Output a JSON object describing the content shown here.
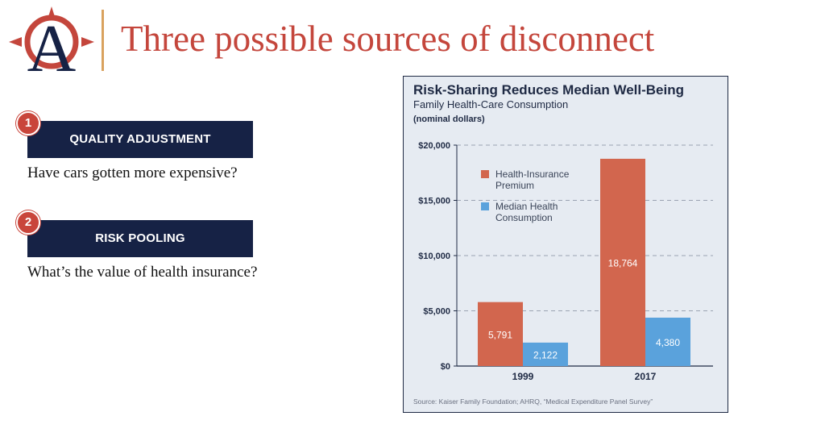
{
  "slide": {
    "title": "Three possible sources of disconnect",
    "logo_letter": "A"
  },
  "items": [
    {
      "number": "1",
      "label": "QUALITY ADJUSTMENT",
      "question": "Have cars gotten more expensive?"
    },
    {
      "number": "2",
      "label": "RISK POOLING",
      "question": "What’s the value of health insurance?"
    }
  ],
  "colors": {
    "title_red": "#c4463c",
    "navy": "#162245",
    "badge_red": "#c9453b",
    "divider_gold": "#d9a25e",
    "premium_bar": "#d2664e",
    "consumption_bar": "#5aa2dc",
    "panel_bg": "#e6ebf2"
  },
  "chart_data": {
    "type": "bar",
    "title": "Risk-Sharing Reduces Median Well-Being",
    "subtitle": "Family Health-Care Consumption",
    "ylabel": "(nominal dollars)",
    "categories": [
      "1999",
      "2017"
    ],
    "series": [
      {
        "name": "Health-Insurance Premium",
        "legend_lines": [
          "Health-Insurance",
          "Premium"
        ],
        "values": [
          5791,
          18764
        ],
        "labels": [
          "5,791",
          "18,764"
        ],
        "color": "#d2664e"
      },
      {
        "name": "Median Health Consumption",
        "legend_lines": [
          "Median Health",
          "Consumption"
        ],
        "values": [
          2122,
          4380
        ],
        "labels": [
          "2,122",
          "4,380"
        ],
        "color": "#5aa2dc"
      }
    ],
    "ylim": [
      0,
      20000
    ],
    "yticks": [
      0,
      5000,
      10000,
      15000,
      20000
    ],
    "ytick_labels": [
      "$0",
      "$5,000",
      "$10,000",
      "$15,000",
      "$20,000"
    ],
    "grid": true,
    "legend_position": "top-left",
    "source": "Source: Kaiser Family Foundation; AHRQ, “Medical Expenditure Panel Survey”"
  }
}
